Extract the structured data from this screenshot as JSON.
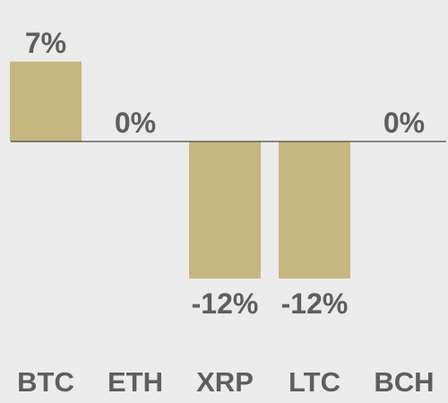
{
  "chart_data": {
    "type": "bar",
    "categories": [
      "BTC",
      "ETH",
      "XRP",
      "LTC",
      "BCH"
    ],
    "values": [
      7,
      0,
      -12,
      -12,
      0
    ],
    "value_labels": [
      "7%",
      "0%",
      "-12%",
      "-12%",
      "0%"
    ],
    "ylim": [
      -14,
      12
    ],
    "grid": false,
    "legend": "none",
    "colors": {
      "bar": "#c8b680",
      "baseline": "#222222",
      "text": "#5e5e5e",
      "background": "#ebebeb"
    }
  }
}
